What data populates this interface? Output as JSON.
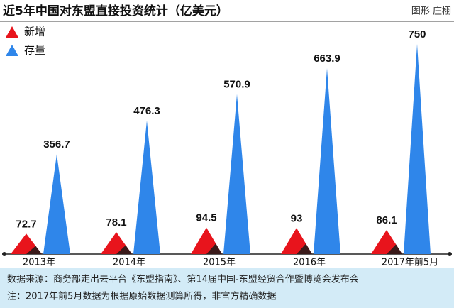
{
  "chart_data": {
    "type": "spike",
    "title": "近5年中国对东盟直接投资统计（亿美元）",
    "credit": "图形 庄栩",
    "categories": [
      "2013年",
      "2014年",
      "2015年",
      "2016年",
      "2017年前5月"
    ],
    "series": [
      {
        "name": "新增",
        "color": "#e8141c",
        "values": [
          72.7,
          78.1,
          94.5,
          93,
          86.1
        ]
      },
      {
        "name": "存量",
        "color": "#2f86ea",
        "values": [
          356.7,
          476.3,
          570.9,
          663.9,
          750
        ]
      }
    ],
    "notes": [
      "数据来源：商务部走出去平台《东盟指南》、第14届中国-东盟经贸合作暨博览会发布会",
      "注：2017年前5月数据为根据原始数据测算所得，非官方精确数据"
    ]
  }
}
